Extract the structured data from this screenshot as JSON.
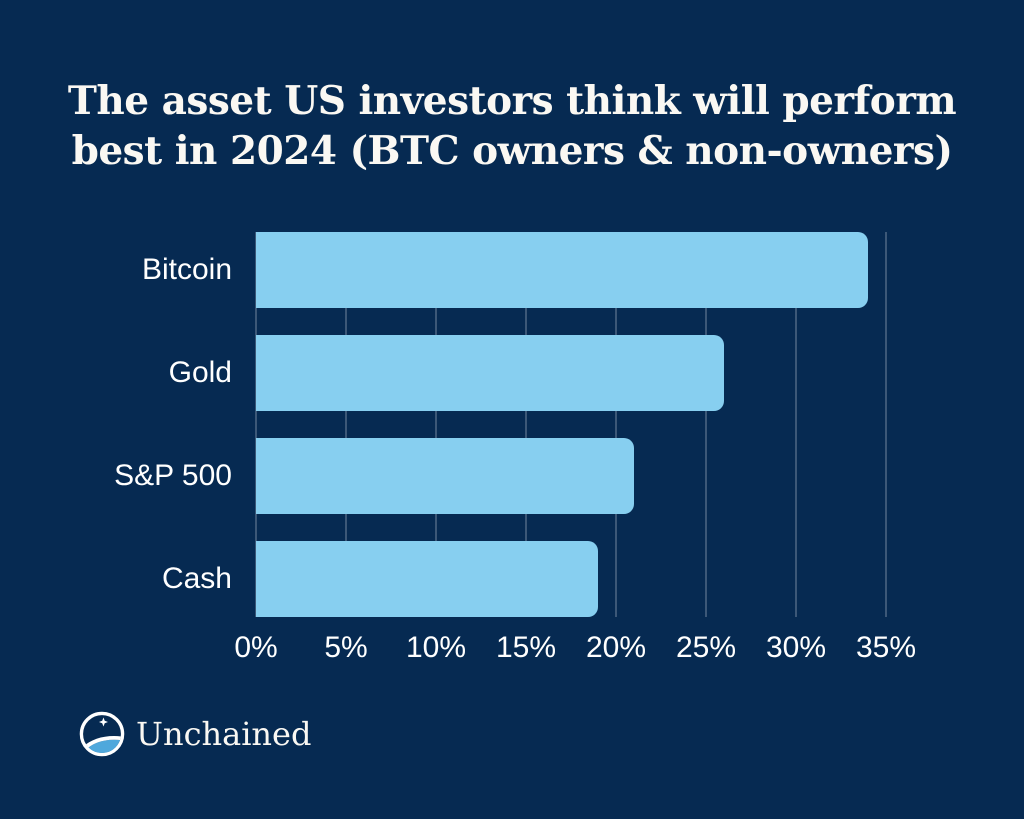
{
  "title": {
    "full": "The asset US investors think will perform best in 2024 (BTC owners & non-owners)",
    "lines": [
      "The asset US investors think will perform",
      "best in 2024 (BTC owners & non-owners)"
    ]
  },
  "chart_data": {
    "type": "bar",
    "orientation": "horizontal",
    "title": "The asset US investors think will perform best in 2024 (BTC owners & non-owners)",
    "categories": [
      "Bitcoin",
      "Gold",
      "S&P 500",
      "Cash"
    ],
    "values": [
      34,
      26,
      21,
      19
    ],
    "unit": "%",
    "xlabel": "",
    "ylabel": "",
    "xlim": [
      0,
      35
    ],
    "x_ticks": [
      {
        "value": 0,
        "label": "0%"
      },
      {
        "value": 5,
        "label": "5%"
      },
      {
        "value": 10,
        "label": "10%"
      },
      {
        "value": 15,
        "label": "15%"
      },
      {
        "value": 20,
        "label": "20%"
      },
      {
        "value": 25,
        "label": "25%"
      },
      {
        "value": 30,
        "label": "30%"
      },
      {
        "value": 35,
        "label": "35%"
      }
    ],
    "grid": "vertical",
    "legend": "none",
    "bar_color": "#87CFF0",
    "background_color": "#062A52"
  },
  "branding": {
    "logo_text": "Unchained",
    "logo_icon": "unchained-globe-icon"
  },
  "colors": {
    "background": "#062A52",
    "bar": "#87CFF0",
    "gridline": "rgba(255,255,255,0.22)",
    "text": "#FFFFFF",
    "title_text": "#FAF8F3",
    "logo_swoosh_blue": "#4FA8DC"
  }
}
